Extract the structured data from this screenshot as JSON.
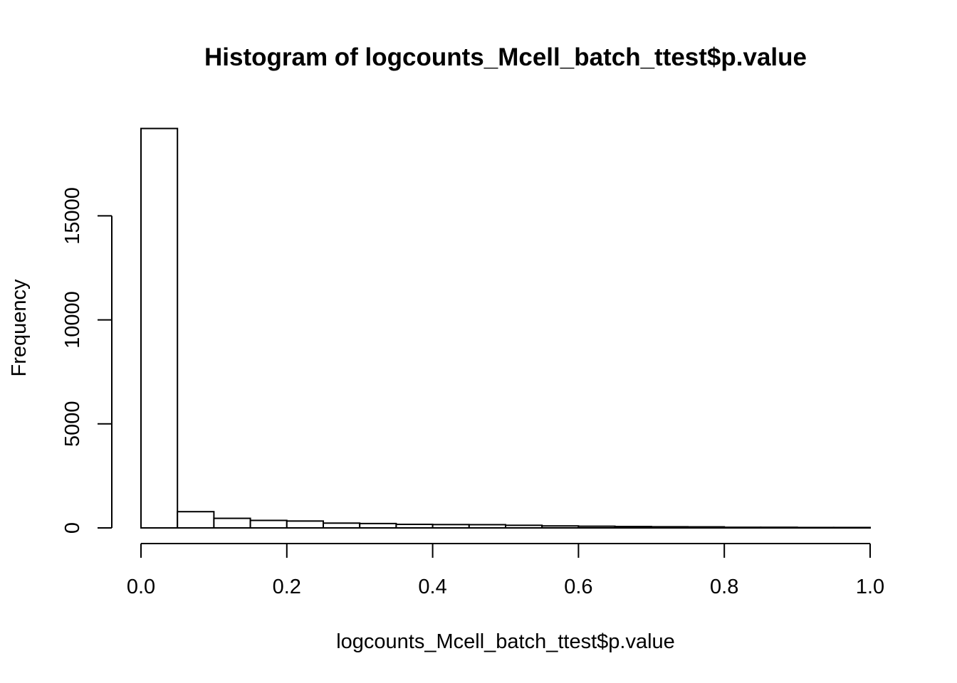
{
  "chart_data": {
    "type": "bar",
    "title": "Histogram of logcounts_Mcell_batch_ttest$p.value",
    "xlabel": "logcounts_Mcell_batch_ttest$p.value",
    "ylabel": "Frequency",
    "bin_edges": [
      0.0,
      0.05,
      0.1,
      0.15,
      0.2,
      0.25,
      0.3,
      0.35,
      0.4,
      0.45,
      0.5,
      0.55,
      0.6,
      0.65,
      0.7,
      0.75,
      0.8,
      0.85,
      0.9,
      0.95,
      1.0
    ],
    "values": [
      19200,
      780,
      460,
      360,
      330,
      230,
      210,
      170,
      160,
      155,
      125,
      95,
      80,
      65,
      55,
      50,
      30,
      30,
      20,
      20
    ],
    "xlim": [
      0.0,
      1.0
    ],
    "ylim": [
      0,
      19200
    ],
    "x_ticks": [
      0.0,
      0.2,
      0.4,
      0.6,
      0.8,
      1.0
    ],
    "x_tick_labels": [
      "0.0",
      "0.2",
      "0.4",
      "0.6",
      "0.8",
      "1.0"
    ],
    "y_ticks": [
      0,
      5000,
      10000,
      15000
    ],
    "y_tick_labels": [
      "0",
      "5000",
      "10000",
      "15000"
    ],
    "grid": false,
    "bar_fill": "#ffffff",
    "bar_stroke": "#000000"
  }
}
